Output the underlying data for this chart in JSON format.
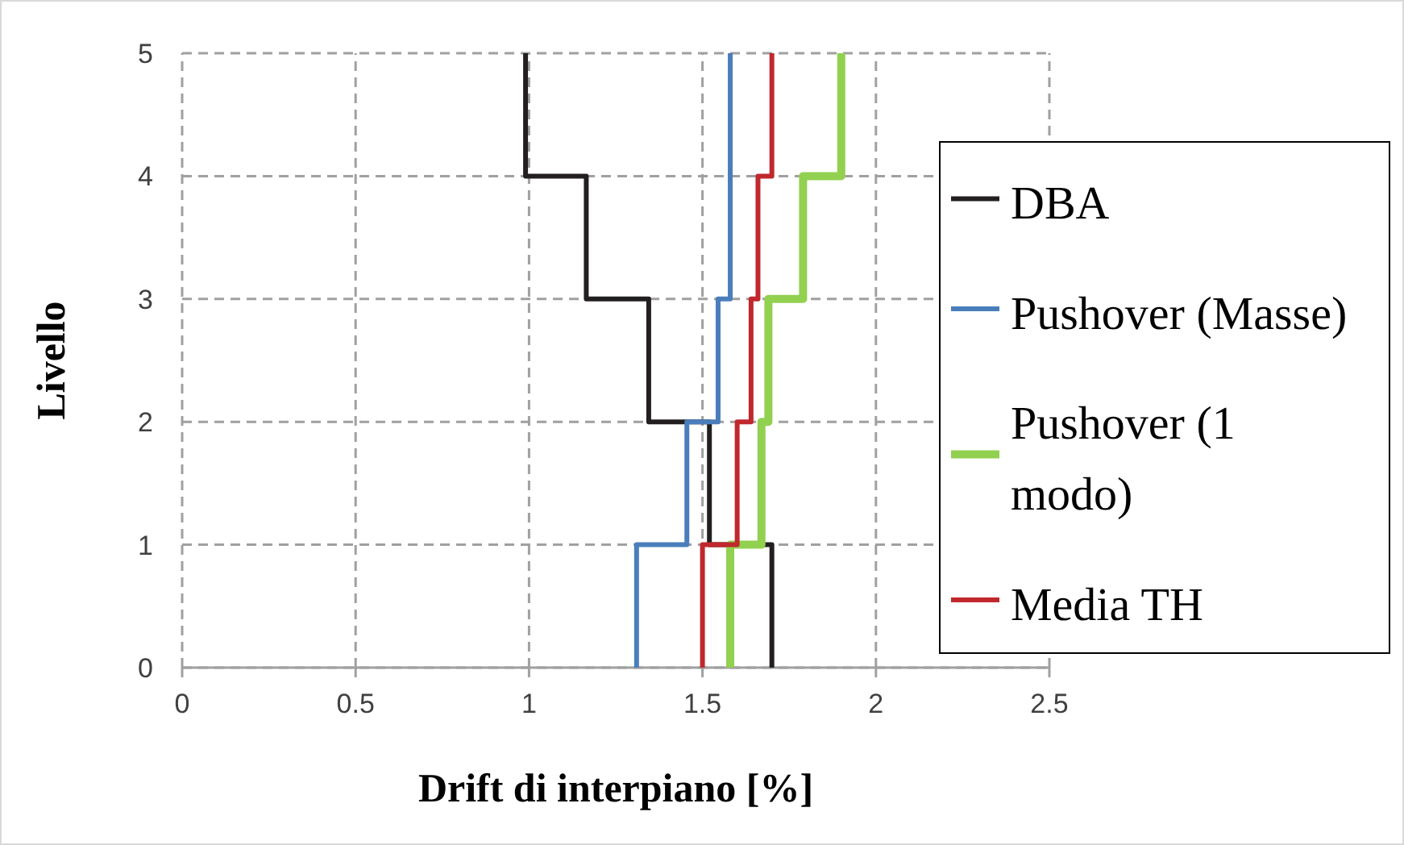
{
  "chart_data": {
    "type": "line",
    "xlabel": "Drift di interpiano [%]",
    "ylabel": "Livello",
    "xlim": [
      0,
      2.5
    ],
    "xticks": [
      0,
      0.5,
      1,
      1.5,
      2,
      2.5
    ],
    "ylim": [
      0,
      5
    ],
    "yticks": [
      0,
      1,
      2,
      3,
      4,
      5
    ],
    "grid": true,
    "legend": "right",
    "marker": "none",
    "line_style": "solid",
    "series": [
      {
        "name": "DBA",
        "color": "#231f20",
        "x": [
          1.7,
          1.7,
          1.52,
          1.52,
          1.345,
          1.345,
          1.165,
          1.165,
          0.99,
          0.99
        ],
        "values": [
          0,
          1,
          1,
          2,
          2,
          3,
          3,
          4,
          4,
          5
        ]
      },
      {
        "name": "Pushover (Masse)",
        "color": "#4a7ebb",
        "x": [
          1.31,
          1.31,
          1.455,
          1.455,
          1.545,
          1.545,
          1.58,
          1.58
        ],
        "values": [
          0,
          1,
          1,
          2,
          2,
          3,
          3,
          5
        ]
      },
      {
        "name": "Pushover (1 modo)",
        "color": "#92d050",
        "x": [
          1.58,
          1.58,
          1.67,
          1.67,
          1.69,
          1.69,
          1.79,
          1.79,
          1.9,
          1.9
        ],
        "values": [
          0,
          1,
          1,
          2,
          2,
          3,
          3,
          4,
          4,
          5
        ]
      },
      {
        "name": "Media TH",
        "color": "#c0282d",
        "x": [
          1.5,
          1.5,
          1.6,
          1.6,
          1.64,
          1.64,
          1.66,
          1.66,
          1.7,
          1.7
        ],
        "values": [
          0,
          1,
          1,
          2,
          2,
          3,
          3,
          4,
          4,
          5
        ]
      }
    ]
  }
}
